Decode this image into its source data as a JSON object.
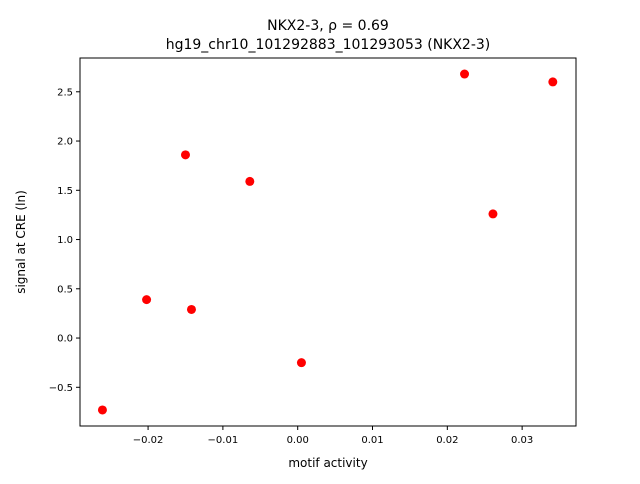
{
  "chart_data": {
    "type": "scatter",
    "title_line1": "NKX2-3, ρ = 0.69",
    "title_line2": "hg19_chr10_101292883_101293053 (NKX2-3)",
    "xlabel": "motif activity",
    "ylabel": "signal at CRE (ln)",
    "xlim": [
      -0.0291,
      0.0372
    ],
    "ylim": [
      -0.893,
      2.843
    ],
    "xticks": [
      -0.02,
      -0.01,
      0.0,
      0.01,
      0.02,
      0.03
    ],
    "xtick_labels": [
      "−0.02",
      "−0.01",
      "0.00",
      "0.01",
      "0.02",
      "0.03"
    ],
    "yticks": [
      -0.5,
      0.0,
      0.5,
      1.0,
      1.5,
      2.0,
      2.5
    ],
    "ytick_labels": [
      "−0.5",
      "0.0",
      "0.5",
      "1.0",
      "1.5",
      "2.0",
      "2.5"
    ],
    "grid": false,
    "point_color": "#ff0000",
    "points": [
      {
        "x": -0.0261,
        "y": -0.73
      },
      {
        "x": -0.0202,
        "y": 0.39
      },
      {
        "x": -0.015,
        "y": 1.86
      },
      {
        "x": -0.0142,
        "y": 0.29
      },
      {
        "x": -0.0064,
        "y": 1.59
      },
      {
        "x": 0.0005,
        "y": -0.25
      },
      {
        "x": 0.0223,
        "y": 2.68
      },
      {
        "x": 0.0261,
        "y": 1.26
      },
      {
        "x": 0.0341,
        "y": 2.6
      }
    ]
  }
}
